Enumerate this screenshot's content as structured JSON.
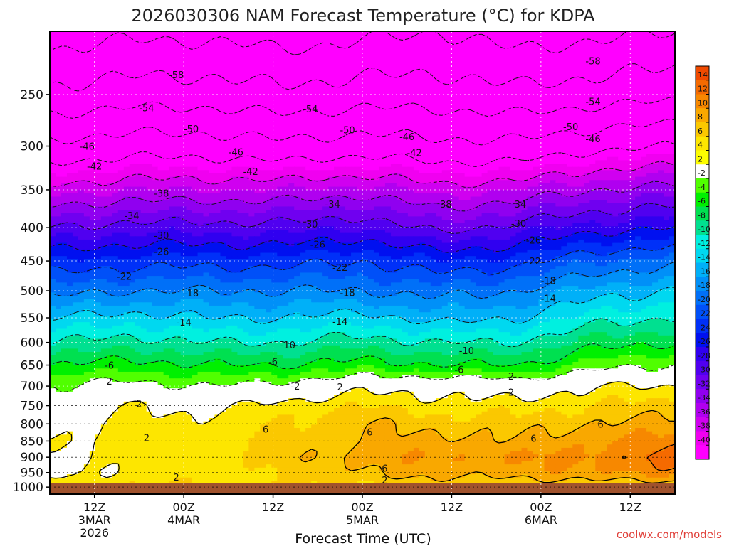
{
  "chart_data": {
    "type": "heatmap",
    "title": "2026030306 NAM Forecast Temperature (°C) for KDPA",
    "xlabel": "Forecast Time (UTC)",
    "ylabel": "",
    "credit": "coolwx.com/models",
    "x_ticks": [
      {
        "label": "12Z",
        "sub": "3MAR",
        "sub2": "2026",
        "hour": 6
      },
      {
        "label": "00Z",
        "sub": "4MAR",
        "sub2": "",
        "hour": 18
      },
      {
        "label": "12Z",
        "sub": "",
        "sub2": "",
        "hour": 30
      },
      {
        "label": "00Z",
        "sub": "5MAR",
        "sub2": "",
        "hour": 42
      },
      {
        "label": "12Z",
        "sub": "",
        "sub2": "",
        "hour": 54
      },
      {
        "label": "00Z",
        "sub": "6MAR",
        "sub2": "",
        "hour": 66
      },
      {
        "label": "12Z",
        "sub": "",
        "sub2": "",
        "hour": 78
      }
    ],
    "x_range_hours": [
      0,
      84
    ],
    "y_ticks": [
      250,
      300,
      350,
      400,
      450,
      500,
      550,
      600,
      650,
      700,
      750,
      800,
      850,
      900,
      950,
      1000
    ],
    "y_range_hPa": [
      200,
      1025
    ],
    "y_axis": "log-pressure, inverted",
    "surface_pressure_hPa": 985,
    "grid": "dotted",
    "colorbar": {
      "labels": [
        "14",
        "12",
        "10",
        "8",
        "6",
        "4",
        "2",
        "-2",
        "-4",
        "-6",
        "-8",
        "-10",
        "-12",
        "-14",
        "-16",
        "-18",
        "-20",
        "-22",
        "-24",
        "-26",
        "-28",
        "-30",
        "-32",
        "-34",
        "-36",
        "-38",
        "-40"
      ],
      "colors": [
        "#f04a00",
        "#f56a00",
        "#f78800",
        "#f9a800",
        "#fbc800",
        "#fde600",
        "#fdfd00",
        "#ffffff",
        "#50ff00",
        "#00f000",
        "#00e050",
        "#00e090",
        "#00f0e0",
        "#00d8f0",
        "#00b0f8",
        "#0090f8",
        "#0070f8",
        "#0050f8",
        "#0030f8",
        "#0010f0",
        "#3000f0",
        "#5000f0",
        "#7000f0",
        "#9000f0",
        "#b000f0",
        "#d000f0",
        "#f000f0",
        "#ff00ff"
      ]
    },
    "temperature_levels": [
      {
        "p": 1000,
        "t": [
          4,
          4,
          4,
          4,
          4,
          4,
          4,
          4,
          4
        ]
      },
      {
        "p": 950,
        "t": [
          1,
          3,
          3,
          4,
          6,
          7,
          7,
          8,
          9
        ]
      },
      {
        "p": 900,
        "t": [
          1,
          3,
          3,
          5,
          7,
          8,
          8,
          9,
          11
        ]
      },
      {
        "p": 850,
        "t": [
          2,
          3,
          3,
          5,
          6,
          7,
          6,
          8,
          9
        ]
      },
      {
        "p": 800,
        "t": [
          1,
          3,
          3,
          4,
          6,
          5,
          5,
          6,
          7
        ]
      },
      {
        "p": 750,
        "t": [
          0,
          2,
          1,
          3,
          4,
          3,
          3,
          4,
          5
        ]
      },
      {
        "p": 700,
        "t": [
          -2,
          -1,
          -2,
          -1,
          1,
          1,
          0,
          2,
          2
        ]
      },
      {
        "p": 650,
        "t": [
          -6,
          -5,
          -6,
          -6,
          -5,
          -6,
          -6,
          -3,
          -2
        ]
      },
      {
        "p": 600,
        "t": [
          -10,
          -9,
          -10,
          -10,
          -9,
          -10,
          -10,
          -7,
          -6
        ]
      },
      {
        "p": 550,
        "t": [
          -14,
          -13,
          -14,
          -14,
          -13,
          -15,
          -14,
          -11,
          -10
        ]
      },
      {
        "p": 500,
        "t": [
          -19,
          -18,
          -18,
          -18,
          -18,
          -19,
          -18,
          -15,
          -14
        ]
      },
      {
        "p": 450,
        "t": [
          -24,
          -23,
          -23,
          -23,
          -22,
          -24,
          -23,
          -20,
          -19
        ]
      },
      {
        "p": 400,
        "t": [
          -30,
          -29,
          -29,
          -29,
          -28,
          -31,
          -29,
          -27,
          -26
        ]
      },
      {
        "p": 350,
        "t": [
          -37,
          -36,
          -36,
          -36,
          -35,
          -37,
          -36,
          -34,
          -33
        ]
      },
      {
        "p": 300,
        "t": [
          -45,
          -44,
          -44,
          -45,
          -44,
          -45,
          -45,
          -43,
          -42
        ]
      },
      {
        "p": 250,
        "t": [
          -53,
          -52,
          -52,
          -53,
          -52,
          -52,
          -53,
          -52,
          -51
        ]
      },
      {
        "p": 200,
        "t": [
          -60,
          -59,
          -59,
          -60,
          -59,
          -58,
          -60,
          -59,
          -58
        ]
      }
    ],
    "contour_labels": [
      {
        "text": "-58",
        "hour": 17,
        "p": 233
      },
      {
        "text": "-58",
        "hour": 73,
        "p": 222
      },
      {
        "text": "-54",
        "hour": 13,
        "p": 262
      },
      {
        "text": "-54",
        "hour": 35,
        "p": 263
      },
      {
        "text": "-54",
        "hour": 73,
        "p": 256
      },
      {
        "text": "-50",
        "hour": 19,
        "p": 282
      },
      {
        "text": "-50",
        "hour": 40,
        "p": 283
      },
      {
        "text": "-50",
        "hour": 70,
        "p": 280
      },
      {
        "text": "-46",
        "hour": 5,
        "p": 300
      },
      {
        "text": "-46",
        "hour": 25,
        "p": 306
      },
      {
        "text": "-46",
        "hour": 48,
        "p": 290
      },
      {
        "text": "-46",
        "hour": 73,
        "p": 292
      },
      {
        "text": "-42",
        "hour": 6,
        "p": 322
      },
      {
        "text": "-42",
        "hour": 27,
        "p": 328
      },
      {
        "text": "-42",
        "hour": 49,
        "p": 307
      },
      {
        "text": "-38",
        "hour": 15,
        "p": 354
      },
      {
        "text": "-38",
        "hour": 53,
        "p": 368
      },
      {
        "text": "-34",
        "hour": 11,
        "p": 383
      },
      {
        "text": "-34",
        "hour": 38,
        "p": 368
      },
      {
        "text": "-34",
        "hour": 63,
        "p": 368
      },
      {
        "text": "-30",
        "hour": 15,
        "p": 411
      },
      {
        "text": "-30",
        "hour": 35,
        "p": 395
      },
      {
        "text": "-30",
        "hour": 63,
        "p": 394
      },
      {
        "text": "-26",
        "hour": 15,
        "p": 435
      },
      {
        "text": "-26",
        "hour": 36,
        "p": 424
      },
      {
        "text": "-26",
        "hour": 65,
        "p": 418
      },
      {
        "text": "-22",
        "hour": 10,
        "p": 475
      },
      {
        "text": "-22",
        "hour": 39,
        "p": 460
      },
      {
        "text": "-22",
        "hour": 65,
        "p": 450
      },
      {
        "text": "-18",
        "hour": 19,
        "p": 504
      },
      {
        "text": "-18",
        "hour": 40,
        "p": 503
      },
      {
        "text": "-18",
        "hour": 67,
        "p": 482
      },
      {
        "text": "-14",
        "hour": 18,
        "p": 558
      },
      {
        "text": "-14",
        "hour": 39,
        "p": 557
      },
      {
        "text": "-14",
        "hour": 67,
        "p": 513
      },
      {
        "text": "-10",
        "hour": 32,
        "p": 605
      },
      {
        "text": "-10",
        "hour": 56,
        "p": 617
      },
      {
        "text": "-6",
        "hour": 8,
        "p": 650
      },
      {
        "text": "-6",
        "hour": 30,
        "p": 642
      },
      {
        "text": "-6",
        "hour": 55,
        "p": 660
      },
      {
        "text": "-2",
        "hour": 33,
        "p": 700
      },
      {
        "text": "2",
        "hour": 39,
        "p": 702
      },
      {
        "text": "2",
        "hour": 62,
        "p": 676
      },
      {
        "text": "2",
        "hour": 62,
        "p": 715
      },
      {
        "text": "2",
        "hour": 8,
        "p": 688
      },
      {
        "text": "2",
        "hour": 12,
        "p": 744
      },
      {
        "text": "2",
        "hour": 13,
        "p": 840
      },
      {
        "text": "2",
        "hour": 17,
        "p": 965
      },
      {
        "text": "2",
        "hour": 45,
        "p": 975
      },
      {
        "text": "6",
        "hour": 29,
        "p": 815
      },
      {
        "text": "6",
        "hour": 43,
        "p": 823
      },
      {
        "text": "6",
        "hour": 45,
        "p": 935
      },
      {
        "text": "6",
        "hour": 65,
        "p": 842
      },
      {
        "text": "6",
        "hour": 74,
        "p": 800
      }
    ]
  }
}
